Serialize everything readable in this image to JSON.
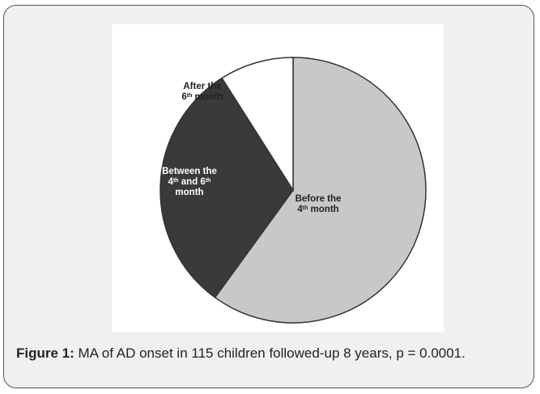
{
  "chart_data": {
    "type": "pie",
    "slices": [
      {
        "label_lines": [
          [
            "Before the"
          ],
          [
            "4",
            "th",
            " month"
          ]
        ],
        "value": 60.0,
        "color": "#c8c8c8"
      },
      {
        "label_lines": [
          [
            "Between the"
          ],
          [
            "4",
            "th",
            " and 6",
            "th"
          ],
          [
            "month"
          ]
        ],
        "value": 31.0,
        "color": "#3a3a3a"
      },
      {
        "label_lines": [
          [
            "After the"
          ],
          [
            "6",
            "th",
            " month"
          ]
        ],
        "value": 9.0,
        "color": "#ffffff"
      }
    ],
    "label_colors": [
      "#222222",
      "#ffffff",
      "#222222"
    ],
    "start_angle_deg": 0,
    "direction": "clockwise"
  },
  "caption": {
    "label": "Figure 1:",
    "text": " MA of AD onset in 115 children followed-up 8 years, p = 0.0001."
  }
}
